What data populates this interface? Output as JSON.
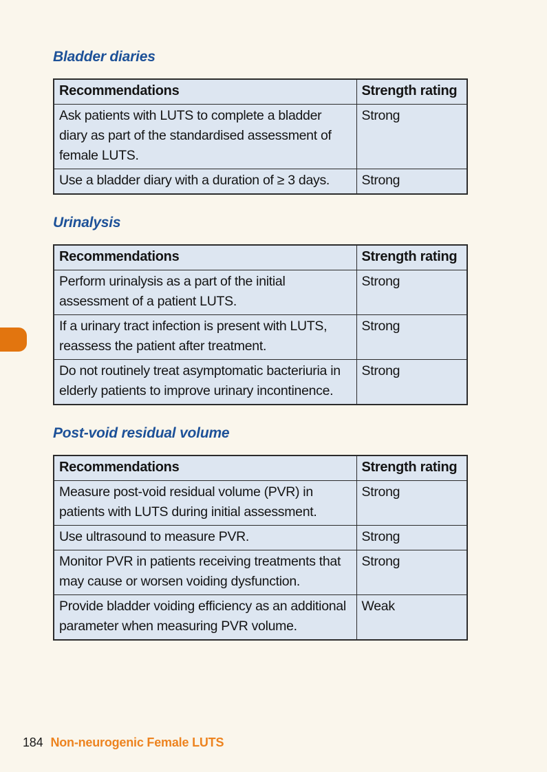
{
  "theme": {
    "page_bg": "#faf6ec",
    "heading_blue": "#1d5198",
    "cell_bg": "#dde6f1",
    "border_color": "#2b2b2b",
    "accent_orange": "#e2750f",
    "footer_orange": "#ed831f"
  },
  "footer": {
    "page_number": "184",
    "title": "Non-neurogenic Female LUTS"
  },
  "sections": [
    {
      "heading": "Bladder diaries",
      "table": {
        "headers": [
          "Recommendations",
          "Strength rating"
        ],
        "rows": [
          {
            "recommendation": "Ask patients with LUTS to complete a bladder diary as part of the standardised assessment of female LUTS.",
            "strength": "Strong"
          },
          {
            "recommendation": "Use a bladder diary with a duration of ≥ 3 days.",
            "strength": "Strong"
          }
        ]
      }
    },
    {
      "heading": "Urinalysis",
      "table": {
        "headers": [
          "Recommendations",
          "Strength rating"
        ],
        "rows": [
          {
            "recommendation": "Perform urinalysis as a part of the initial assessment of a patient LUTS.",
            "strength": "Strong"
          },
          {
            "recommendation": "If a urinary tract infection is present with LUTS, reassess the patient after treatment.",
            "strength": "Strong"
          },
          {
            "recommendation": "Do not routinely treat asymptomatic bacteriuria in elderly patients to improve urinary incontinence.",
            "strength": "Strong"
          }
        ]
      }
    },
    {
      "heading": "Post-void residual volume",
      "table": {
        "headers": [
          "Recommendations",
          "Strength rating"
        ],
        "rows": [
          {
            "recommendation": "Measure post-void residual volume (PVR) in patients with LUTS during initial assessment.",
            "strength": "Strong"
          },
          {
            "recommendation": "Use ultrasound to measure PVR.",
            "strength": "Strong"
          },
          {
            "recommendation": "Monitor PVR in patients receiving treatments that may cause or worsen voiding dysfunction.",
            "strength": "Strong"
          },
          {
            "recommendation": "Provide bladder voiding efficiency as an additional parameter when measuring PVR volume.",
            "strength": "Weak"
          }
        ]
      }
    }
  ]
}
